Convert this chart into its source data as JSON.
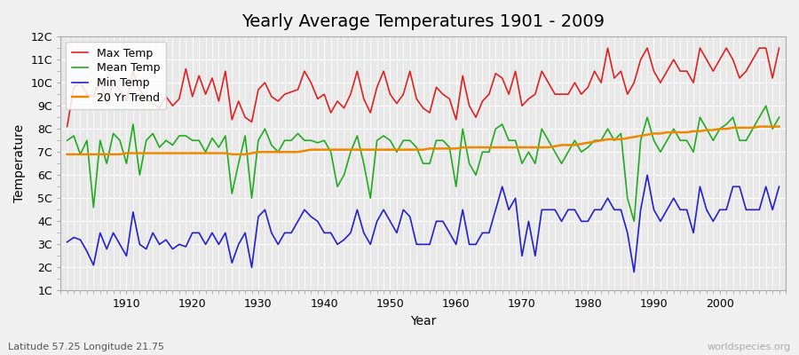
{
  "title": "Yearly Average Temperatures 1901 - 2009",
  "xlabel": "Year",
  "ylabel": "Temperature",
  "subtitle_lat": "Latitude 57.25 Longitude 21.75",
  "watermark": "worldspecies.org",
  "years": [
    1901,
    1902,
    1903,
    1904,
    1905,
    1906,
    1907,
    1908,
    1909,
    1910,
    1911,
    1912,
    1913,
    1914,
    1915,
    1916,
    1917,
    1918,
    1919,
    1920,
    1921,
    1922,
    1923,
    1924,
    1925,
    1926,
    1927,
    1928,
    1929,
    1930,
    1931,
    1932,
    1933,
    1934,
    1935,
    1936,
    1937,
    1938,
    1939,
    1940,
    1941,
    1942,
    1943,
    1944,
    1945,
    1946,
    1947,
    1948,
    1949,
    1950,
    1951,
    1952,
    1953,
    1954,
    1955,
    1956,
    1957,
    1958,
    1959,
    1960,
    1961,
    1962,
    1963,
    1964,
    1965,
    1966,
    1967,
    1968,
    1969,
    1970,
    1971,
    1972,
    1973,
    1974,
    1975,
    1976,
    1977,
    1978,
    1979,
    1980,
    1981,
    1982,
    1983,
    1984,
    1985,
    1986,
    1987,
    1988,
    1989,
    1990,
    1991,
    1992,
    1993,
    1994,
    1995,
    1996,
    1997,
    1998,
    1999,
    2000,
    2001,
    2002,
    2003,
    2004,
    2005,
    2006,
    2007,
    2008,
    2009
  ],
  "max_temp": [
    8.1,
    9.8,
    10.0,
    9.5,
    9.4,
    10.2,
    9.1,
    10.0,
    9.7,
    9.2,
    10.5,
    9.7,
    9.3,
    9.1,
    8.9,
    9.4,
    9.0,
    9.3,
    10.6,
    9.4,
    10.3,
    9.5,
    10.2,
    9.2,
    10.5,
    8.4,
    9.2,
    8.5,
    8.3,
    9.7,
    10.0,
    9.4,
    9.2,
    9.5,
    9.6,
    9.7,
    10.5,
    10.0,
    9.3,
    9.5,
    8.7,
    9.2,
    8.9,
    9.5,
    10.5,
    9.3,
    8.7,
    9.8,
    10.5,
    9.5,
    9.1,
    9.5,
    10.5,
    9.3,
    8.9,
    8.7,
    9.8,
    9.5,
    9.3,
    8.4,
    10.3,
    9.0,
    8.5,
    9.2,
    9.5,
    10.4,
    10.2,
    9.5,
    10.5,
    9.0,
    9.3,
    9.5,
    10.5,
    10.0,
    9.5,
    9.5,
    9.5,
    10.0,
    9.5,
    9.8,
    10.5,
    10.0,
    11.5,
    10.2,
    10.5,
    9.5,
    10.0,
    11.0,
    11.5,
    10.5,
    10.0,
    10.5,
    11.0,
    10.5,
    10.5,
    10.0,
    11.5,
    11.0,
    10.5,
    11.0,
    11.5,
    11.0,
    10.2,
    10.5,
    11.0,
    11.5,
    11.5,
    10.2,
    11.5
  ],
  "mean_temp": [
    7.5,
    7.7,
    6.9,
    7.5,
    4.6,
    7.5,
    6.5,
    7.8,
    7.5,
    6.5,
    8.2,
    6.0,
    7.5,
    7.8,
    7.2,
    7.5,
    7.3,
    7.7,
    7.7,
    7.5,
    7.5,
    7.0,
    7.6,
    7.2,
    7.7,
    5.2,
    6.5,
    7.7,
    5.0,
    7.5,
    8.0,
    7.3,
    7.0,
    7.5,
    7.5,
    7.8,
    7.5,
    7.5,
    7.4,
    7.5,
    7.0,
    5.5,
    6.0,
    7.0,
    7.7,
    6.5,
    5.0,
    7.5,
    7.7,
    7.5,
    7.0,
    7.5,
    7.5,
    7.2,
    6.5,
    6.5,
    7.5,
    7.5,
    7.2,
    5.5,
    8.0,
    6.5,
    6.0,
    7.0,
    7.0,
    8.0,
    8.2,
    7.5,
    7.5,
    6.5,
    7.0,
    6.5,
    8.0,
    7.5,
    7.0,
    6.5,
    7.0,
    7.5,
    7.0,
    7.2,
    7.5,
    7.5,
    8.0,
    7.5,
    7.8,
    5.0,
    4.0,
    7.5,
    8.5,
    7.5,
    7.0,
    7.5,
    8.0,
    7.5,
    7.5,
    7.0,
    8.5,
    8.0,
    7.5,
    8.0,
    8.2,
    8.5,
    7.5,
    7.5,
    8.0,
    8.5,
    9.0,
    8.0,
    8.5
  ],
  "min_temp": [
    3.1,
    3.3,
    3.2,
    2.7,
    2.1,
    3.5,
    2.8,
    3.5,
    3.0,
    2.5,
    4.4,
    3.0,
    2.8,
    3.5,
    3.0,
    3.2,
    2.8,
    3.0,
    2.9,
    3.5,
    3.5,
    3.0,
    3.5,
    3.0,
    3.5,
    2.2,
    3.0,
    3.5,
    2.0,
    4.2,
    4.5,
    3.5,
    3.0,
    3.5,
    3.5,
    4.0,
    4.5,
    4.2,
    4.0,
    3.5,
    3.5,
    3.0,
    3.2,
    3.5,
    4.5,
    3.5,
    3.0,
    4.0,
    4.5,
    4.0,
    3.5,
    4.5,
    4.2,
    3.0,
    3.0,
    3.0,
    4.0,
    4.0,
    3.5,
    3.0,
    4.5,
    3.0,
    3.0,
    3.5,
    3.5,
    4.5,
    5.5,
    4.5,
    5.0,
    2.5,
    4.0,
    2.5,
    4.5,
    4.5,
    4.5,
    4.0,
    4.5,
    4.5,
    4.0,
    4.0,
    4.5,
    4.5,
    5.0,
    4.5,
    4.5,
    3.5,
    1.8,
    4.5,
    6.0,
    4.5,
    4.0,
    4.5,
    5.0,
    4.5,
    4.5,
    3.5,
    5.5,
    4.5,
    4.0,
    4.5,
    4.5,
    5.5,
    5.5,
    4.5,
    4.5,
    4.5,
    5.5,
    4.5,
    5.5
  ],
  "trend_20yr": [
    6.9,
    6.9,
    6.9,
    6.9,
    6.9,
    6.9,
    6.9,
    6.9,
    6.9,
    6.95,
    6.95,
    6.95,
    6.95,
    6.95,
    6.95,
    6.95,
    6.95,
    6.95,
    6.95,
    6.95,
    6.95,
    6.95,
    6.95,
    6.95,
    6.95,
    6.9,
    6.9,
    6.9,
    6.95,
    7.0,
    7.0,
    7.0,
    7.0,
    7.0,
    7.0,
    7.0,
    7.05,
    7.1,
    7.1,
    7.1,
    7.1,
    7.1,
    7.1,
    7.1,
    7.1,
    7.1,
    7.1,
    7.1,
    7.1,
    7.1,
    7.1,
    7.1,
    7.1,
    7.1,
    7.1,
    7.15,
    7.15,
    7.15,
    7.15,
    7.15,
    7.2,
    7.2,
    7.2,
    7.2,
    7.2,
    7.2,
    7.2,
    7.2,
    7.2,
    7.2,
    7.2,
    7.2,
    7.2,
    7.2,
    7.25,
    7.3,
    7.3,
    7.3,
    7.35,
    7.4,
    7.45,
    7.5,
    7.55,
    7.55,
    7.55,
    7.6,
    7.65,
    7.7,
    7.75,
    7.8,
    7.8,
    7.85,
    7.85,
    7.85,
    7.85,
    7.9,
    7.9,
    7.95,
    7.95,
    8.0,
    8.0,
    8.05,
    8.05,
    8.05,
    8.05,
    8.1,
    8.1,
    8.1,
    8.1
  ],
  "max_color": "#dd2222",
  "mean_color": "#22aa22",
  "min_color": "#2222cc",
  "trend_color": "#ee8800",
  "bg_color": "#f0f0f0",
  "plot_bg_color": "#e8e8e8",
  "grid_color": "#ffffff",
  "ylim": [
    1,
    12
  ],
  "yticks": [
    1,
    2,
    3,
    4,
    5,
    6,
    7,
    8,
    9,
    10,
    11,
    12
  ],
  "ytick_labels": [
    "1C",
    "2C",
    "3C",
    "4C",
    "5C",
    "6C",
    "7C",
    "8C",
    "9C",
    "10C",
    "11C",
    "12C"
  ],
  "xticks": [
    1910,
    1920,
    1930,
    1940,
    1950,
    1960,
    1970,
    1980,
    1990,
    2000
  ],
  "title_fontsize": 14,
  "label_fontsize": 10,
  "tick_fontsize": 9,
  "legend_fontsize": 9,
  "linewidth": 1.2
}
